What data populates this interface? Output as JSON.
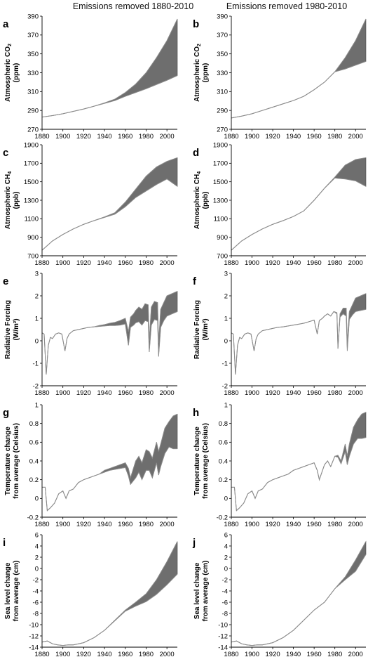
{
  "column_titles": [
    "Emissions removed 1880-2010",
    "Emissions removed 1980-2010"
  ],
  "panel_letters": [
    "a",
    "b",
    "c",
    "d",
    "e",
    "f",
    "g",
    "h",
    "i",
    "j"
  ],
  "row_ylabels": [
    [
      "Atmospheric CO",
      "(ppm)"
    ],
    [
      "Atmospheric CH",
      "(ppb)"
    ],
    [
      "Radiative Forcing",
      "(W/m²)"
    ],
    [
      "Temperature change",
      "from average (Celsius)"
    ],
    [
      "Sea level change",
      "from average (cm)"
    ]
  ],
  "colors": {
    "band": "#6e6e6e",
    "line": "#8c8c8c",
    "axis": "#000000"
  },
  "chart_data": [
    {
      "panel": "a",
      "type": "area",
      "xlim": [
        1880,
        2010
      ],
      "ylim": [
        270,
        390
      ],
      "xticks": [
        1880,
        1900,
        1920,
        1940,
        1960,
        1980,
        2000
      ],
      "yticks": [
        270,
        290,
        310,
        330,
        350,
        370,
        390
      ],
      "ylabel": "Atmospheric CO2 (ppm)",
      "x": [
        1880,
        1890,
        1900,
        1910,
        1920,
        1930,
        1940,
        1950,
        1960,
        1970,
        1980,
        1990,
        2000,
        2010
      ],
      "series": [
        {
          "name": "upper",
          "values": [
            283,
            284.5,
            286.5,
            289,
            291.5,
            294.5,
            298,
            302,
            309,
            318,
            330,
            346,
            364,
            387
          ]
        },
        {
          "name": "lower",
          "values": [
            283,
            284.5,
            286.5,
            289,
            291.5,
            294.5,
            297.5,
            300.5,
            305,
            309,
            313,
            317.5,
            322,
            327
          ]
        }
      ]
    },
    {
      "panel": "b",
      "type": "area",
      "xlim": [
        1880,
        2010
      ],
      "ylim": [
        270,
        390
      ],
      "xticks": [
        1880,
        1900,
        1920,
        1940,
        1960,
        1980,
        2000
      ],
      "yticks": [
        270,
        290,
        310,
        330,
        350,
        370,
        390
      ],
      "ylabel": "Atmospheric CO2 (ppm)",
      "x": [
        1880,
        1890,
        1900,
        1910,
        1920,
        1930,
        1940,
        1950,
        1960,
        1970,
        1980,
        1990,
        2000,
        2010
      ],
      "series": [
        {
          "name": "upper",
          "values": [
            282,
            284,
            286.5,
            290,
            293.5,
            297,
            300.5,
            305,
            312,
            320,
            331,
            346,
            364,
            387
          ]
        },
        {
          "name": "lower",
          "values": [
            282,
            284,
            286.5,
            290,
            293.5,
            297,
            300.5,
            305,
            312,
            320,
            331,
            334,
            338,
            342
          ]
        }
      ]
    },
    {
      "panel": "c",
      "type": "area",
      "xlim": [
        1880,
        2010
      ],
      "ylim": [
        700,
        1900
      ],
      "xticks": [
        1880,
        1900,
        1920,
        1940,
        1960,
        1980,
        2000
      ],
      "yticks": [
        700,
        900,
        1100,
        1300,
        1500,
        1700,
        1900
      ],
      "ylabel": "Atmospheric CH4 (ppb)",
      "x": [
        1880,
        1890,
        1900,
        1910,
        1920,
        1930,
        1940,
        1950,
        1960,
        1970,
        1980,
        1990,
        2000,
        2010
      ],
      "series": [
        {
          "name": "upper",
          "values": [
            760,
            860,
            930,
            990,
            1040,
            1080,
            1120,
            1165,
            1280,
            1420,
            1560,
            1660,
            1720,
            1760
          ]
        },
        {
          "name": "lower",
          "values": [
            760,
            860,
            930,
            990,
            1040,
            1080,
            1115,
            1150,
            1230,
            1330,
            1400,
            1470,
            1530,
            1450
          ]
        }
      ]
    },
    {
      "panel": "d",
      "type": "area",
      "xlim": [
        1880,
        2010
      ],
      "ylim": [
        700,
        1900
      ],
      "xticks": [
        1880,
        1900,
        1920,
        1940,
        1960,
        1980,
        2000
      ],
      "yticks": [
        700,
        900,
        1100,
        1300,
        1500,
        1700,
        1900
      ],
      "ylabel": "Atmospheric CH4 (ppb)",
      "x": [
        1880,
        1890,
        1900,
        1910,
        1920,
        1930,
        1940,
        1950,
        1960,
        1970,
        1980,
        1990,
        2000,
        2010
      ],
      "series": [
        {
          "name": "upper",
          "values": [
            760,
            860,
            930,
            990,
            1040,
            1080,
            1125,
            1185,
            1300,
            1430,
            1550,
            1680,
            1740,
            1760
          ]
        },
        {
          "name": "lower",
          "values": [
            760,
            860,
            930,
            990,
            1040,
            1080,
            1125,
            1185,
            1300,
            1430,
            1540,
            1530,
            1510,
            1450
          ]
        }
      ]
    },
    {
      "panel": "e",
      "type": "area",
      "xlim": [
        1880,
        2010
      ],
      "ylim": [
        -2,
        3
      ],
      "xticks": [
        1880,
        1900,
        1920,
        1940,
        1960,
        1980,
        2000
      ],
      "yticks": [
        -2,
        -1,
        0,
        1,
        2,
        3
      ],
      "ylabel": "Radiative Forcing (W/m2)",
      "x": [
        1880,
        1882,
        1884,
        1886,
        1888,
        1890,
        1893,
        1896,
        1899,
        1902,
        1904,
        1906,
        1910,
        1915,
        1920,
        1925,
        1930,
        1935,
        1940,
        1945,
        1950,
        1955,
        1960,
        1963,
        1965,
        1968,
        1970,
        1973,
        1976,
        1979,
        1982,
        1983,
        1985,
        1988,
        1991,
        1992,
        1994,
        1997,
        2000,
        2005,
        2010
      ],
      "series": [
        {
          "name": "upper",
          "values": [
            0.35,
            0.3,
            -1.5,
            -0.2,
            0.15,
            0.1,
            0.3,
            0.35,
            0.3,
            -0.45,
            0.1,
            0.3,
            0.45,
            0.5,
            0.55,
            0.6,
            0.62,
            0.68,
            0.72,
            0.78,
            0.82,
            0.9,
            1.0,
            0.4,
            1.05,
            1.2,
            1.35,
            1.5,
            1.4,
            1.65,
            1.6,
            0.0,
            1.5,
            1.75,
            1.7,
            -0.1,
            1.4,
            1.7,
            2.0,
            2.1,
            2.2
          ]
        },
        {
          "name": "lower",
          "values": [
            0.35,
            0.3,
            -1.5,
            -0.2,
            0.15,
            0.1,
            0.3,
            0.35,
            0.3,
            -0.45,
            0.1,
            0.3,
            0.45,
            0.5,
            0.55,
            0.6,
            0.62,
            0.64,
            0.66,
            0.68,
            0.68,
            0.7,
            0.75,
            -0.2,
            0.6,
            0.7,
            0.8,
            0.85,
            0.7,
            0.9,
            0.85,
            -0.5,
            0.7,
            0.95,
            0.9,
            -0.7,
            0.6,
            0.9,
            1.1,
            1.2,
            1.3
          ]
        }
      ]
    },
    {
      "panel": "f",
      "type": "area",
      "xlim": [
        1880,
        2010
      ],
      "ylim": [
        -2,
        3
      ],
      "xticks": [
        1880,
        1900,
        1920,
        1940,
        1960,
        1980,
        2000
      ],
      "yticks": [
        -2,
        -1,
        0,
        1,
        2,
        3
      ],
      "ylabel": "Radiative Forcing (W/m2)",
      "x": [
        1880,
        1882,
        1884,
        1886,
        1888,
        1890,
        1893,
        1896,
        1899,
        1902,
        1904,
        1906,
        1910,
        1915,
        1920,
        1925,
        1930,
        1935,
        1940,
        1945,
        1950,
        1955,
        1960,
        1963,
        1965,
        1968,
        1970,
        1973,
        1976,
        1979,
        1982,
        1983,
        1985,
        1988,
        1991,
        1992,
        1994,
        1997,
        2000,
        2005,
        2010
      ],
      "series": [
        {
          "name": "upper",
          "values": [
            0.35,
            0.3,
            -1.5,
            -0.2,
            0.15,
            0.1,
            0.3,
            0.35,
            0.3,
            -0.45,
            0.1,
            0.3,
            0.45,
            0.5,
            0.55,
            0.6,
            0.62,
            0.66,
            0.7,
            0.74,
            0.78,
            0.85,
            0.92,
            0.3,
            0.9,
            1.0,
            1.1,
            1.2,
            1.1,
            1.3,
            1.25,
            -0.3,
            1.2,
            1.45,
            1.45,
            -0.1,
            1.3,
            1.6,
            1.9,
            2.0,
            2.1
          ]
        },
        {
          "name": "lower",
          "values": [
            0.35,
            0.3,
            -1.5,
            -0.2,
            0.15,
            0.1,
            0.3,
            0.35,
            0.3,
            -0.45,
            0.1,
            0.3,
            0.45,
            0.5,
            0.55,
            0.6,
            0.62,
            0.66,
            0.7,
            0.74,
            0.78,
            0.85,
            0.92,
            0.3,
            0.9,
            1.0,
            1.1,
            1.2,
            1.1,
            1.3,
            1.2,
            -0.35,
            1.05,
            1.2,
            1.1,
            -0.45,
            0.95,
            1.15,
            1.3,
            1.35,
            1.4
          ]
        }
      ]
    },
    {
      "panel": "g",
      "type": "area",
      "xlim": [
        1880,
        2010
      ],
      "ylim": [
        -0.2,
        1
      ],
      "xticks": [
        1880,
        1900,
        1920,
        1940,
        1960,
        1980,
        2000
      ],
      "yticks": [
        -0.2,
        0,
        0.2,
        0.4,
        0.6,
        0.8,
        1
      ],
      "ylabel": "Temperature change from average (Celsius)",
      "x": [
        1880,
        1883,
        1885,
        1888,
        1892,
        1896,
        1900,
        1903,
        1906,
        1910,
        1915,
        1920,
        1925,
        1930,
        1935,
        1940,
        1945,
        1950,
        1955,
        1960,
        1963,
        1965,
        1970,
        1973,
        1976,
        1980,
        1983,
        1986,
        1990,
        1992,
        1994,
        1998,
        2002,
        2006,
        2010
      ],
      "series": [
        {
          "name": "upper",
          "values": [
            0.12,
            0.12,
            -0.13,
            -0.1,
            -0.05,
            0.05,
            0.08,
            0.0,
            0.08,
            0.1,
            0.17,
            0.2,
            0.22,
            0.24,
            0.26,
            0.3,
            0.32,
            0.34,
            0.36,
            0.38,
            0.32,
            0.22,
            0.4,
            0.45,
            0.38,
            0.52,
            0.5,
            0.43,
            0.6,
            0.5,
            0.58,
            0.75,
            0.82,
            0.88,
            0.9
          ]
        },
        {
          "name": "lower",
          "values": [
            0.12,
            0.12,
            -0.13,
            -0.1,
            -0.05,
            0.05,
            0.08,
            0.0,
            0.08,
            0.1,
            0.17,
            0.2,
            0.22,
            0.24,
            0.26,
            0.28,
            0.3,
            0.31,
            0.32,
            0.33,
            0.24,
            0.15,
            0.22,
            0.28,
            0.2,
            0.3,
            0.3,
            0.22,
            0.38,
            0.25,
            0.34,
            0.48,
            0.55,
            0.53,
            0.53
          ]
        }
      ]
    },
    {
      "panel": "h",
      "type": "area",
      "xlim": [
        1880,
        2010
      ],
      "ylim": [
        -0.2,
        1
      ],
      "xticks": [
        1880,
        1900,
        1920,
        1940,
        1960,
        1980,
        2000
      ],
      "yticks": [
        -0.2,
        0,
        0.2,
        0.4,
        0.6,
        0.8,
        1
      ],
      "ylabel": "Temperature change from average (Celsius)",
      "x": [
        1880,
        1883,
        1885,
        1888,
        1892,
        1896,
        1900,
        1903,
        1906,
        1910,
        1915,
        1920,
        1925,
        1930,
        1935,
        1940,
        1945,
        1950,
        1955,
        1960,
        1963,
        1965,
        1970,
        1973,
        1976,
        1980,
        1983,
        1986,
        1990,
        1992,
        1994,
        1998,
        2002,
        2006,
        2010
      ],
      "series": [
        {
          "name": "upper",
          "values": [
            0.12,
            0.12,
            -0.13,
            -0.1,
            -0.05,
            0.05,
            0.08,
            0.0,
            0.08,
            0.1,
            0.17,
            0.2,
            0.22,
            0.24,
            0.26,
            0.3,
            0.32,
            0.34,
            0.36,
            0.38,
            0.3,
            0.2,
            0.36,
            0.4,
            0.34,
            0.45,
            0.46,
            0.4,
            0.58,
            0.45,
            0.58,
            0.76,
            0.84,
            0.9,
            0.92
          ]
        },
        {
          "name": "lower",
          "values": [
            0.12,
            0.12,
            -0.13,
            -0.1,
            -0.05,
            0.05,
            0.08,
            0.0,
            0.08,
            0.1,
            0.17,
            0.2,
            0.22,
            0.24,
            0.26,
            0.3,
            0.32,
            0.34,
            0.36,
            0.38,
            0.3,
            0.2,
            0.36,
            0.4,
            0.34,
            0.45,
            0.44,
            0.37,
            0.5,
            0.36,
            0.45,
            0.58,
            0.64,
            0.64,
            0.65
          ]
        }
      ]
    },
    {
      "panel": "i",
      "type": "area",
      "xlim": [
        1880,
        2010
      ],
      "ylim": [
        -14,
        6
      ],
      "xticks": [
        1880,
        1900,
        1920,
        1940,
        1960,
        1980,
        2000
      ],
      "yticks": [
        -14,
        -12,
        -10,
        -8,
        -6,
        -4,
        -2,
        0,
        2,
        4,
        6
      ],
      "ylabel": "Sea level change from average (cm)",
      "x": [
        1880,
        1885,
        1890,
        1895,
        1900,
        1905,
        1910,
        1915,
        1920,
        1930,
        1940,
        1950,
        1960,
        1970,
        1980,
        1990,
        2000,
        2010
      ],
      "series": [
        {
          "name": "upper",
          "values": [
            -13.1,
            -12.9,
            -13.4,
            -13.6,
            -13.7,
            -13.6,
            -13.6,
            -13.4,
            -13.2,
            -12.3,
            -11.0,
            -9.2,
            -7.4,
            -6.0,
            -4.5,
            -2.0,
            1.2,
            4.8
          ]
        },
        {
          "name": "lower",
          "values": [
            -13.1,
            -12.9,
            -13.4,
            -13.6,
            -13.7,
            -13.6,
            -13.6,
            -13.4,
            -13.2,
            -12.3,
            -11.0,
            -9.3,
            -7.6,
            -6.7,
            -5.9,
            -4.6,
            -2.9,
            -1.0
          ]
        }
      ]
    },
    {
      "panel": "j",
      "type": "area",
      "xlim": [
        1880,
        2010
      ],
      "ylim": [
        -14,
        6
      ],
      "xticks": [
        1880,
        1900,
        1920,
        1940,
        1960,
        1980,
        2000
      ],
      "yticks": [
        -14,
        -12,
        -10,
        -8,
        -6,
        -4,
        -2,
        0,
        2,
        4,
        6
      ],
      "ylabel": "Sea level change from average (cm)",
      "x": [
        1880,
        1885,
        1890,
        1895,
        1900,
        1905,
        1910,
        1915,
        1920,
        1930,
        1940,
        1950,
        1960,
        1970,
        1980,
        1990,
        2000,
        2010
      ],
      "series": [
        {
          "name": "upper",
          "values": [
            -13.1,
            -12.9,
            -13.4,
            -13.6,
            -13.7,
            -13.6,
            -13.6,
            -13.4,
            -13.2,
            -12.3,
            -11.0,
            -9.2,
            -7.4,
            -6.0,
            -3.6,
            -1.5,
            1.5,
            4.8
          ]
        },
        {
          "name": "lower",
          "values": [
            -13.1,
            -12.9,
            -13.4,
            -13.6,
            -13.7,
            -13.6,
            -13.6,
            -13.4,
            -13.2,
            -12.3,
            -11.0,
            -9.2,
            -7.4,
            -6.0,
            -3.6,
            -2.0,
            -0.5,
            2.5
          ]
        }
      ]
    }
  ]
}
